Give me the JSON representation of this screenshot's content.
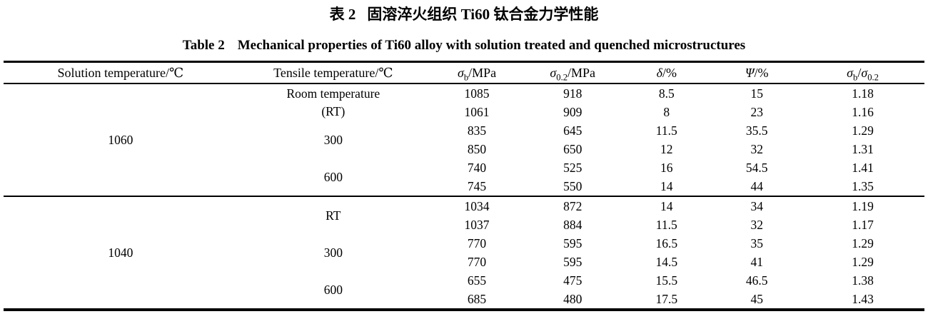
{
  "title": {
    "zh_label": "表 2",
    "zh_text": "固溶淬火组织 Ti60 钛合金力学性能",
    "en_label": "Table 2",
    "en_text": "Mechanical properties of Ti60 alloy with solution treated and quenched microstructures"
  },
  "table": {
    "headers": {
      "solution_temp": "Solution temperature/℃",
      "tensile_temp": "Tensile temperature/℃",
      "sigma_b": {
        "sym": "σ",
        "sub": "b",
        "rest": "/MPa"
      },
      "sigma_02": {
        "sym": "σ",
        "sub": "0.2",
        "rest": "/MPa"
      },
      "delta": {
        "sym": "δ",
        "rest": "/%"
      },
      "psi": {
        "sym": "Ψ",
        "rest": "/%"
      },
      "ratio": {
        "sym1": "σ",
        "sub1": "b",
        "slash": "/",
        "sym2": "σ",
        "sub2": "0.2"
      }
    },
    "groups": [
      {
        "solution_temp": "1060",
        "blocks": [
          {
            "label_lines": [
              "Room temperature",
              "(RT)"
            ],
            "rows": [
              [
                "1085",
                "918",
                "8.5",
                "15",
                "1.18"
              ],
              [
                "1061",
                "909",
                "8",
                "23",
                "1.16"
              ]
            ]
          },
          {
            "label_lines": [
              "300"
            ],
            "rows": [
              [
                "835",
                "645",
                "11.5",
                "35.5",
                "1.29"
              ],
              [
                "850",
                "650",
                "12",
                "32",
                "1.31"
              ]
            ]
          },
          {
            "label_lines": [
              "600"
            ],
            "rows": [
              [
                "740",
                "525",
                "16",
                "54.5",
                "1.41"
              ],
              [
                "745",
                "550",
                "14",
                "44",
                "1.35"
              ]
            ]
          }
        ]
      },
      {
        "solution_temp": "1040",
        "blocks": [
          {
            "label_lines": [
              "RT"
            ],
            "rows": [
              [
                "1034",
                "872",
                "14",
                "34",
                "1.19"
              ],
              [
                "1037",
                "884",
                "11.5",
                "32",
                "1.17"
              ]
            ]
          },
          {
            "label_lines": [
              "300"
            ],
            "rows": [
              [
                "770",
                "595",
                "16.5",
                "35",
                "1.29"
              ],
              [
                "770",
                "595",
                "14.5",
                "41",
                "1.29"
              ]
            ]
          },
          {
            "label_lines": [
              "600"
            ],
            "rows": [
              [
                "655",
                "475",
                "15.5",
                "46.5",
                "1.38"
              ],
              [
                "685",
                "480",
                "17.5",
                "45",
                "1.43"
              ]
            ]
          }
        ]
      }
    ]
  }
}
